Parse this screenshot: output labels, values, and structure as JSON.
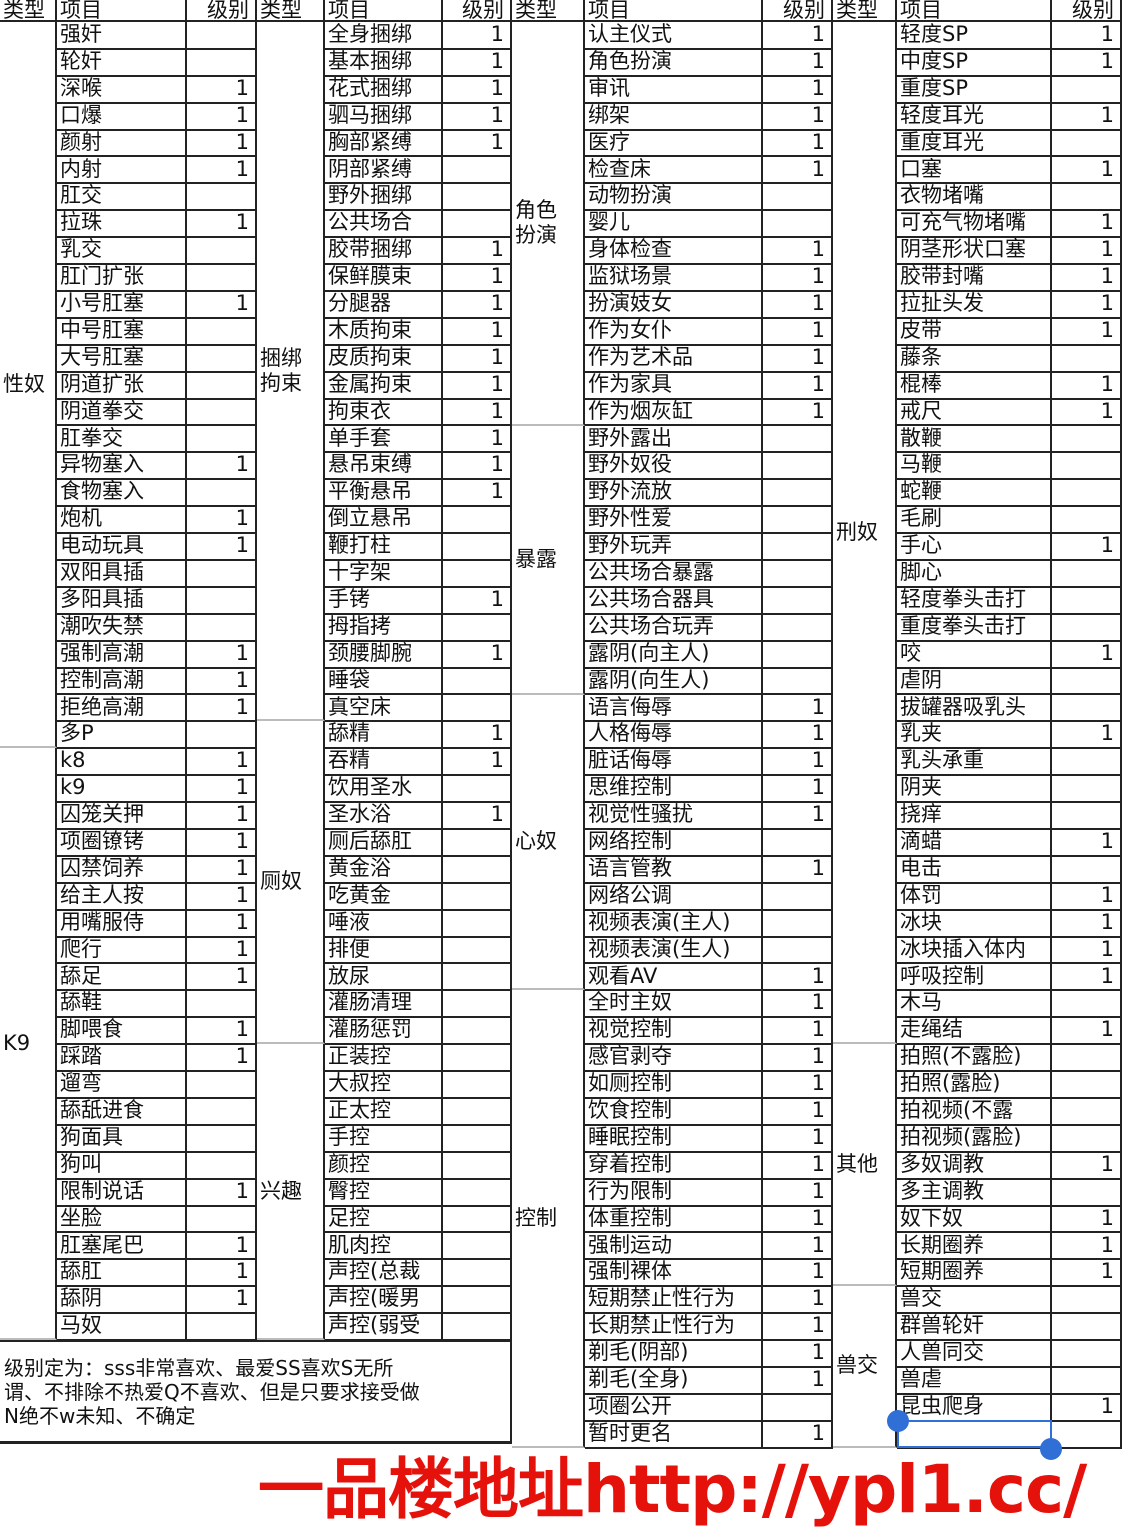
{
  "headers": {
    "type": "类型",
    "item": "项目",
    "level": "级别"
  },
  "groups": [
    [
      {
        "type": "性奴",
        "rows": [
          [
            "强奸",
            ""
          ],
          [
            "轮奸",
            ""
          ],
          [
            "深喉",
            "1"
          ],
          [
            "口爆",
            "1"
          ],
          [
            "颜射",
            "1"
          ],
          [
            "内射",
            "1"
          ],
          [
            "肛交",
            ""
          ],
          [
            "拉珠",
            "1"
          ],
          [
            "乳交",
            ""
          ],
          [
            "肛门扩张",
            ""
          ],
          [
            "小号肛塞",
            "1"
          ],
          [
            "中号肛塞",
            ""
          ],
          [
            "大号肛塞",
            ""
          ],
          [
            "阴道扩张",
            ""
          ],
          [
            "阴道拳交",
            ""
          ],
          [
            "肛拳交",
            ""
          ],
          [
            "异物塞入",
            "1"
          ],
          [
            "食物塞入",
            ""
          ],
          [
            "炮机",
            "1"
          ],
          [
            "电动玩具",
            "1"
          ],
          [
            "双阳具插",
            ""
          ],
          [
            "多阳具插",
            ""
          ],
          [
            "潮吹失禁",
            ""
          ],
          [
            "强制高潮",
            "1"
          ],
          [
            "控制高潮",
            "1"
          ],
          [
            "拒绝高潮",
            "1"
          ],
          [
            "多P",
            ""
          ]
        ]
      },
      {
        "type": "K9",
        "rows": [
          [
            "k8",
            "1"
          ],
          [
            "k9",
            "1"
          ],
          [
            "囚笼关押",
            "1"
          ],
          [
            "项圈镣铐",
            "1"
          ],
          [
            "囚禁饲养",
            "1"
          ],
          [
            "给主人按",
            "1"
          ],
          [
            "用嘴服侍",
            "1"
          ],
          [
            "爬行",
            "1"
          ],
          [
            "舔足",
            "1"
          ],
          [
            "舔鞋",
            ""
          ],
          [
            "脚喂食",
            "1"
          ],
          [
            "踩踏",
            "1"
          ],
          [
            "遛弯",
            ""
          ],
          [
            "舔舐进食",
            ""
          ],
          [
            "狗面具",
            ""
          ],
          [
            "狗叫",
            ""
          ],
          [
            "限制说话",
            "1"
          ],
          [
            "坐脸",
            ""
          ],
          [
            "肛塞尾巴",
            "1"
          ],
          [
            "舔肛",
            "1"
          ],
          [
            "舔阴",
            "1"
          ],
          [
            "马奴",
            ""
          ]
        ]
      }
    ],
    [
      {
        "type": "捆绑拘束",
        "rows": [
          [
            "全身捆绑",
            "1"
          ],
          [
            "基本捆绑",
            "1"
          ],
          [
            "花式捆绑",
            "1"
          ],
          [
            "驷马捆绑",
            "1"
          ],
          [
            "胸部紧缚",
            "1"
          ],
          [
            "阴部紧缚",
            ""
          ],
          [
            "野外捆绑",
            ""
          ],
          [
            "公共场合",
            ""
          ],
          [
            "胶带捆绑",
            "1"
          ],
          [
            "保鲜膜束",
            "1"
          ],
          [
            "分腿器",
            "1"
          ],
          [
            "木质拘束",
            "1"
          ],
          [
            "皮质拘束",
            "1"
          ],
          [
            "金属拘束",
            "1"
          ],
          [
            "拘束衣",
            "1"
          ],
          [
            "单手套",
            "1"
          ],
          [
            "悬吊束缚",
            "1"
          ],
          [
            "平衡悬吊",
            "1"
          ],
          [
            "倒立悬吊",
            ""
          ],
          [
            "鞭打柱",
            ""
          ],
          [
            "十字架",
            ""
          ],
          [
            "手铐",
            "1"
          ],
          [
            "拇指拷",
            ""
          ],
          [
            "颈腰脚腕",
            "1"
          ],
          [
            "睡袋",
            ""
          ],
          [
            "真空床",
            ""
          ]
        ]
      },
      {
        "type": "厕奴",
        "rows": [
          [
            "舔精",
            "1"
          ],
          [
            "吞精",
            "1"
          ],
          [
            "饮用圣水",
            ""
          ],
          [
            "圣水浴",
            "1"
          ],
          [
            "厕后舔肛",
            ""
          ],
          [
            "黄金浴",
            ""
          ],
          [
            "吃黄金",
            ""
          ],
          [
            "唾液",
            ""
          ],
          [
            "排便",
            ""
          ],
          [
            "放尿",
            ""
          ],
          [
            "灌肠清理",
            ""
          ],
          [
            "灌肠惩罚",
            ""
          ]
        ]
      },
      {
        "type": "兴趣",
        "rows": [
          [
            "正装控",
            ""
          ],
          [
            "大叔控",
            ""
          ],
          [
            "正太控",
            ""
          ],
          [
            "手控",
            ""
          ],
          [
            "颜控",
            ""
          ],
          [
            "臀控",
            ""
          ],
          [
            "足控",
            ""
          ],
          [
            "肌肉控",
            ""
          ],
          [
            "声控(总裁",
            ""
          ],
          [
            "声控(暖男",
            ""
          ],
          [
            "声控(弱受",
            ""
          ]
        ]
      }
    ],
    [
      {
        "type": "角色扮演",
        "rows": [
          [
            "认主仪式",
            "1"
          ],
          [
            "角色扮演",
            "1"
          ],
          [
            "审讯",
            "1"
          ],
          [
            "绑架",
            "1"
          ],
          [
            "医疗",
            "1"
          ],
          [
            "检查床",
            "1"
          ],
          [
            "动物扮演",
            ""
          ],
          [
            "婴儿",
            ""
          ],
          [
            "身体检查",
            "1"
          ],
          [
            "监狱场景",
            "1"
          ],
          [
            "扮演妓女",
            "1"
          ],
          [
            "作为女仆",
            "1"
          ],
          [
            "作为艺术品",
            "1"
          ],
          [
            "作为家具",
            "1"
          ],
          [
            "作为烟灰缸",
            "1"
          ]
        ]
      },
      {
        "type": "暴露",
        "rows": [
          [
            "野外露出",
            ""
          ],
          [
            "野外奴役",
            ""
          ],
          [
            "野外流放",
            ""
          ],
          [
            "野外性爱",
            ""
          ],
          [
            "野外玩弄",
            ""
          ],
          [
            "公共场合暴露",
            ""
          ],
          [
            "公共场合器具",
            ""
          ],
          [
            "公共场合玩弄",
            ""
          ],
          [
            "露阴(向主人)",
            ""
          ],
          [
            "露阴(向生人)",
            ""
          ]
        ]
      },
      {
        "type": "心奴",
        "rows": [
          [
            "语言侮辱",
            "1"
          ],
          [
            "人格侮辱",
            "1"
          ],
          [
            "脏话侮辱",
            "1"
          ],
          [
            "思维控制",
            "1"
          ],
          [
            "视觉性骚扰",
            "1"
          ],
          [
            "网络控制",
            ""
          ],
          [
            "语言管教",
            "1"
          ],
          [
            "网络公调",
            ""
          ],
          [
            "视频表演(主人)",
            ""
          ],
          [
            "视频表演(生人)",
            ""
          ],
          [
            "观看AV",
            "1"
          ]
        ]
      },
      {
        "type": "控制",
        "rows": [
          [
            "全时主奴",
            "1"
          ],
          [
            "视觉控制",
            "1"
          ],
          [
            "感官剥夺",
            "1"
          ],
          [
            "如厕控制",
            "1"
          ],
          [
            "饮食控制",
            "1"
          ],
          [
            "睡眠控制",
            "1"
          ],
          [
            "穿着控制",
            "1"
          ],
          [
            "行为限制",
            "1"
          ],
          [
            "体重控制",
            "1"
          ],
          [
            "强制运动",
            "1"
          ],
          [
            "强制裸体",
            "1"
          ],
          [
            "短期禁止性行为",
            "1"
          ],
          [
            "长期禁止性行为",
            "1"
          ],
          [
            "剃毛(阴部)",
            "1"
          ],
          [
            "剃毛(全身)",
            "1"
          ],
          [
            "项圈公开",
            ""
          ],
          [
            "暂时更名",
            "1"
          ]
        ]
      }
    ],
    [
      {
        "type": "刑奴",
        "rows": [
          [
            "轻度SP",
            "1"
          ],
          [
            "中度SP",
            "1"
          ],
          [
            "重度SP",
            ""
          ],
          [
            "轻度耳光",
            "1"
          ],
          [
            "重度耳光",
            ""
          ],
          [
            "口塞",
            "1"
          ],
          [
            "衣物堵嘴",
            ""
          ],
          [
            "可充气物堵嘴",
            "1"
          ],
          [
            "阴茎形状口塞",
            "1"
          ],
          [
            "胶带封嘴",
            "1"
          ],
          [
            "拉扯头发",
            "1"
          ],
          [
            "皮带",
            "1"
          ],
          [
            "藤条",
            ""
          ],
          [
            "棍棒",
            "1"
          ],
          [
            "戒尺",
            "1"
          ],
          [
            "散鞭",
            ""
          ],
          [
            "马鞭",
            ""
          ],
          [
            "蛇鞭",
            ""
          ],
          [
            "毛刷",
            ""
          ],
          [
            "手心",
            "1"
          ],
          [
            "脚心",
            ""
          ],
          [
            "轻度拳头击打",
            ""
          ],
          [
            "重度拳头击打",
            ""
          ],
          [
            "咬",
            "1"
          ],
          [
            "虐阴",
            ""
          ],
          [
            "拔罐器吸乳头",
            ""
          ],
          [
            "乳夹",
            "1"
          ],
          [
            "乳头承重",
            ""
          ],
          [
            "阴夹",
            ""
          ],
          [
            "挠痒",
            ""
          ],
          [
            "滴蜡",
            "1"
          ],
          [
            "电击",
            ""
          ],
          [
            "体罚",
            "1"
          ],
          [
            "冰块",
            "1"
          ],
          [
            "冰块插入体内",
            "1"
          ],
          [
            "呼吸控制",
            "1"
          ],
          [
            "木马",
            ""
          ],
          [
            "走绳结",
            "1"
          ]
        ]
      },
      {
        "type": "其他",
        "rows": [
          [
            "拍照(不露脸)",
            ""
          ],
          [
            "拍照(露脸)",
            ""
          ],
          [
            "拍视频(不露",
            ""
          ],
          [
            "拍视频(露脸)",
            ""
          ],
          [
            "多奴调教",
            "1"
          ],
          [
            "多主调教",
            ""
          ],
          [
            "奴下奴",
            "1"
          ],
          [
            "长期圈养",
            "1"
          ],
          [
            "短期圈养",
            "1"
          ]
        ]
      },
      {
        "type": "兽交",
        "rows": [
          [
            "兽交",
            ""
          ],
          [
            "群兽轮奸",
            ""
          ],
          [
            "人兽同交",
            ""
          ],
          [
            "兽虐",
            ""
          ],
          [
            "昆虫爬身",
            "1"
          ],
          [
            "",
            ""
          ]
        ]
      }
    ]
  ],
  "note": {
    "lines": [
      "级别定为：sss非常喜欢、最爱SS喜欢S无所",
      "谓、不排除不热爱Q不喜欢、但是只要求接受做",
      "N绝不w未知、不确定"
    ]
  },
  "watermark": "一品楼地址http://ypl1.cc/",
  "colors": {
    "watermark": "#e5120c",
    "selection": "#2f6fd6",
    "grid": "#222222"
  }
}
